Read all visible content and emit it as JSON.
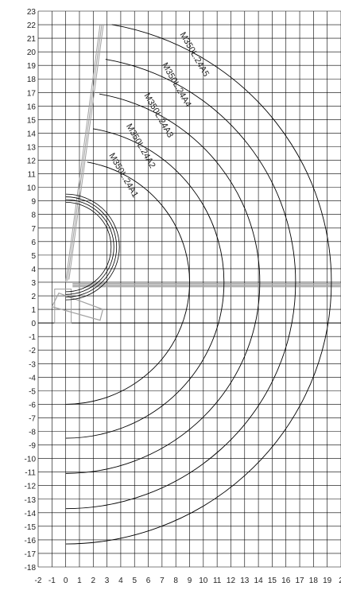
{
  "chart_data": {
    "type": "diagram",
    "x_ticks": [
      "-2",
      "-1",
      "0",
      "1",
      "2",
      "3",
      "4",
      "5",
      "6",
      "7",
      "8",
      "9",
      "10",
      "11",
      "12",
      "13",
      "14",
      "15",
      "16",
      "17",
      "18",
      "19",
      "2"
    ],
    "y_ticks": [
      "23",
      "22",
      "21",
      "20",
      "19",
      "18",
      "17",
      "16",
      "15",
      "14",
      "13",
      "12",
      "11",
      "10",
      "9",
      "8",
      "7",
      "6",
      "5",
      "4",
      "3",
      "2",
      "1",
      "0",
      "-1",
      "-2",
      "-3",
      "-4",
      "-5",
      "-6",
      "-7",
      "-8",
      "-9",
      "-10",
      "-11",
      "-12",
      "-13",
      "-14",
      "-15",
      "-16",
      "-17",
      "-18"
    ],
    "xlim": [
      -2,
      20
    ],
    "ylim": [
      -18,
      23
    ],
    "grid": true,
    "pivot": [
      0,
      3
    ],
    "reach_curves": [
      {
        "label": "M350L.24A1",
        "radius": 9.0
      },
      {
        "label": "M350L.24A2",
        "radius": 11.5
      },
      {
        "label": "M350L.24A3",
        "radius": 14.1
      },
      {
        "label": "M350L.24A4",
        "radius": 16.7
      },
      {
        "label": "M350L.24A5",
        "radius": 19.3
      }
    ],
    "folded_arcs": {
      "center": [
        0,
        5.6
      ],
      "radii": [
        3.9,
        3.7,
        3.5,
        3.3
      ]
    },
    "colors": {
      "grid": "#000000",
      "curve": "#000000",
      "boom": "#a0a0a0"
    }
  }
}
